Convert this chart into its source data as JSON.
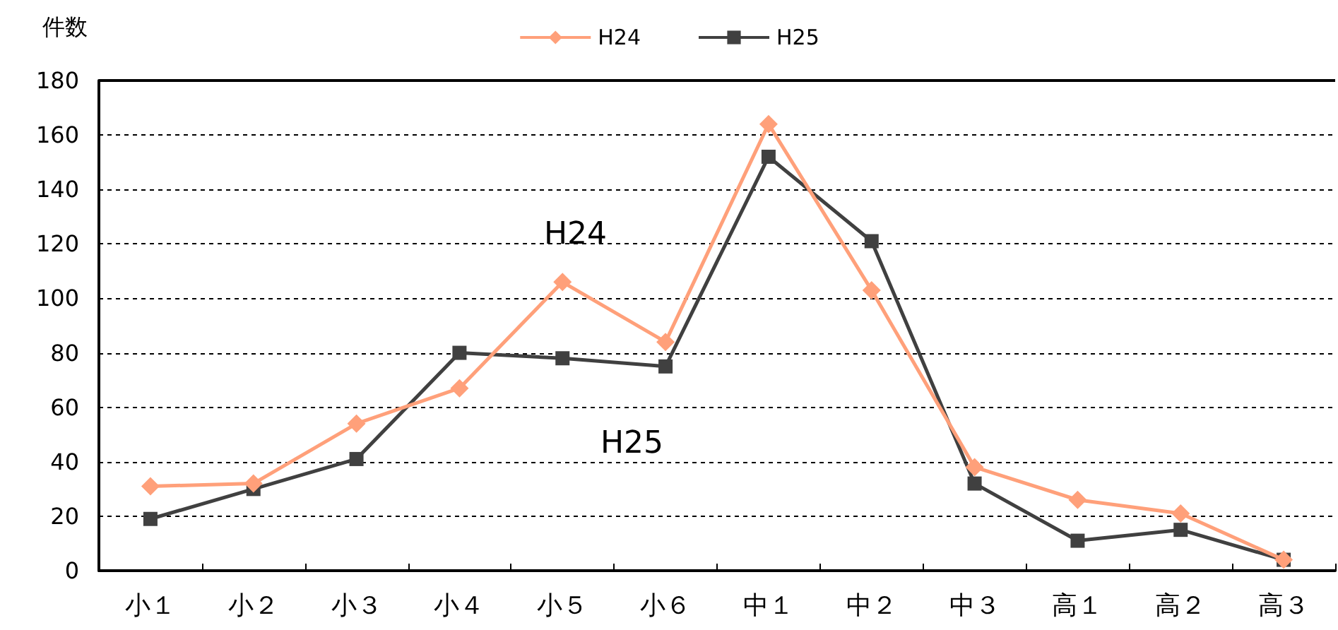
{
  "chart_data": {
    "type": "line",
    "ylabel": "件数",
    "categories": [
      "小１",
      "小２",
      "小３",
      "小４",
      "小５",
      "小６",
      "中１",
      "中２",
      "中３",
      "高１",
      "高２",
      "高３"
    ],
    "series": [
      {
        "name": "H24",
        "color": "#ffa07a",
        "marker": "diamond",
        "values": [
          31,
          32,
          54,
          67,
          106,
          84,
          164,
          103,
          38,
          26,
          21,
          4
        ]
      },
      {
        "name": "H25",
        "color": "#404040",
        "marker": "square",
        "values": [
          19,
          30,
          41,
          80,
          78,
          75,
          152,
          121,
          32,
          11,
          15,
          4
        ]
      }
    ],
    "ylim": [
      0,
      180
    ],
    "yticks": [
      0,
      20,
      40,
      60,
      80,
      100,
      120,
      140,
      160,
      180
    ],
    "grid": "y",
    "legend": "top",
    "line_style": "solid",
    "annotations": [
      "H24",
      "H25"
    ]
  }
}
